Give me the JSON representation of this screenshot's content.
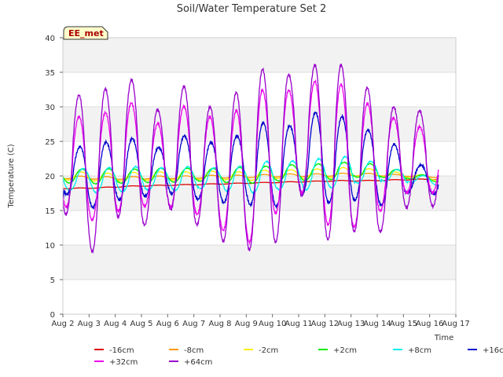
{
  "chart_data": {
    "type": "line",
    "title": "Soil/Water Temperature Set 2",
    "xlabel": "Time",
    "ylabel": "Temperature (C)",
    "site_label": "EE_met",
    "xlim": [
      "Aug 2",
      "Aug 17"
    ],
    "ylim": [
      0,
      40
    ],
    "x_ticks": [
      "Aug 2",
      "Aug 3",
      "Aug 4",
      "Aug 5",
      "Aug 6",
      "Aug 7",
      "Aug 8",
      "Aug 9",
      "Aug 10",
      "Aug 11",
      "Aug 12",
      "Aug 13",
      "Aug 14",
      "Aug 15",
      "Aug 16",
      "Aug 17"
    ],
    "y_ticks": [
      0,
      5,
      10,
      15,
      20,
      25,
      30,
      35,
      40
    ],
    "grid": true,
    "background_bands": true,
    "legend_position": "bottom",
    "data_start": "Aug 2 00:00",
    "data_end": "Aug 16 08:00",
    "series": [
      {
        "name": "-16cm",
        "color": "#dd0000",
        "values": [
          18.2,
          18.3,
          18.5,
          18.6,
          18.7,
          18.8,
          18.9,
          19.0,
          19.1,
          19.2,
          19.3,
          19.3,
          19.4,
          19.5,
          19.5
        ]
      },
      {
        "name": "-8cm",
        "color": "#ff9900",
        "values": [
          19.8,
          19.7,
          19.7,
          19.8,
          19.8,
          19.9,
          19.9,
          20.0,
          20.1,
          20.1,
          20.2,
          20.2,
          20.1,
          20.0,
          19.8
        ]
      },
      {
        "name": "-2cm",
        "color": "#ffee00",
        "values": [
          20.0,
          19.8,
          19.9,
          20.0,
          20.0,
          20.1,
          20.0,
          20.1,
          20.3,
          20.3,
          20.5,
          20.5,
          20.2,
          19.9,
          19.6
        ]
      },
      {
        "name": "+2cm",
        "color": "#00ee00",
        "values": [
          20.0,
          19.9,
          20.0,
          20.1,
          20.1,
          20.2,
          20.1,
          20.2,
          20.5,
          20.5,
          20.8,
          20.8,
          20.3,
          19.8,
          19.4
        ]
      },
      {
        "name": "+8cm",
        "color": "#00eeee",
        "values": [
          19.5,
          19.4,
          19.5,
          19.6,
          19.6,
          19.7,
          19.6,
          19.8,
          20.2,
          20.2,
          20.6,
          20.6,
          20.0,
          19.5,
          19.1
        ]
      },
      {
        "name": "+16cm",
        "color": "#0000cc",
        "values": [
          20.5,
          20.3,
          21.0,
          21.5,
          20.8,
          21.8,
          20.5,
          21.0,
          22.0,
          22.5,
          23.5,
          23.0,
          21.8,
          20.5,
          19.5
        ]
      },
      {
        "name": "+32cm",
        "color": "#ee00ee",
        "values": [
          22.0,
          21.5,
          22.5,
          23.5,
          22.0,
          23.5,
          21.0,
          21.5,
          23.5,
          24.0,
          25.5,
          24.5,
          22.5,
          21.5,
          21.0
        ]
      },
      {
        "name": "+64cm",
        "color": "#9900cc",
        "values": [
          22.5,
          22.0,
          23.5,
          24.0,
          22.5,
          24.0,
          21.0,
          21.5,
          24.0,
          24.5,
          26.0,
          25.0,
          23.0,
          22.0,
          21.5
        ]
      }
    ],
    "daily_min": {
      "+16cm": [
        17.2,
        15.5,
        16.5,
        17.0,
        17.5,
        16.5,
        16.2,
        15.8,
        15.5,
        17.5,
        16.0,
        16.5,
        15.8,
        17.5
      ],
      "+32cm": [
        15.5,
        13.5,
        15.0,
        15.5,
        15.5,
        14.5,
        12.0,
        10.5,
        14.5,
        17.5,
        13.0,
        12.5,
        15.0,
        17.5
      ],
      "+64cm": [
        14.5,
        9.0,
        14.0,
        13.0,
        15.0,
        13.0,
        10.5,
        9.2,
        10.5,
        17.0,
        10.8,
        12.0,
        11.8,
        15.5
      ]
    },
    "daily_max": {
      "+16cm": [
        24.2,
        25.0,
        25.3,
        24.2,
        25.8,
        24.8,
        25.9,
        27.6,
        27.3,
        29.2,
        28.5,
        26.8,
        24.5,
        21.6
      ],
      "+32cm": [
        28.5,
        29.2,
        30.6,
        27.5,
        30.2,
        28.5,
        29.5,
        32.5,
        32.3,
        33.8,
        33.2,
        30.5,
        28.5,
        27.0
      ],
      "+64cm": [
        31.8,
        32.5,
        34.0,
        29.6,
        32.9,
        30.1,
        32.0,
        35.5,
        34.7,
        36.0,
        36.2,
        32.7,
        30.0,
        29.5
      ]
    },
    "daily_amp": {
      "+8cm": [
        1.6,
        1.8,
        1.8,
        1.6,
        1.7,
        1.5,
        1.8,
        2.2,
        2.0,
        2.2,
        2.2,
        1.6,
        1.0,
        0.6
      ],
      "+2cm": [
        1.0,
        1.1,
        1.0,
        1.0,
        1.0,
        0.9,
        1.1,
        1.2,
        1.1,
        1.2,
        1.2,
        1.0,
        0.7,
        0.4
      ],
      "-2cm": [
        0.6,
        0.6,
        0.6,
        0.6,
        0.6,
        0.6,
        0.6,
        0.7,
        0.6,
        0.7,
        0.7,
        0.6,
        0.4,
        0.3
      ],
      "-8cm": [
        0.2,
        0.2,
        0.2,
        0.2,
        0.2,
        0.2,
        0.2,
        0.2,
        0.2,
        0.2,
        0.2,
        0.2,
        0.15,
        0.1
      ],
      "-16cm": [
        0.05,
        0.05,
        0.05,
        0.05,
        0.05,
        0.05,
        0.05,
        0.05,
        0.05,
        0.05,
        0.05,
        0.05,
        0.05,
        0.05
      ]
    }
  }
}
